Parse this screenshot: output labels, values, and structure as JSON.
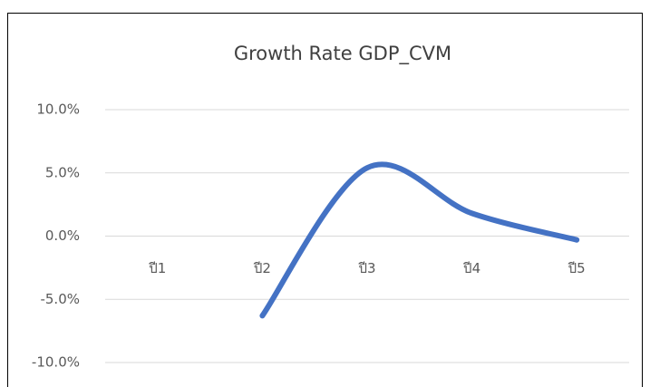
{
  "chart_data": {
    "type": "line",
    "title": "Growth Rate GDP_CVM",
    "categories": [
      "ปี1",
      "ปี2",
      "ปี3",
      "ปี4",
      "ปี5"
    ],
    "values": [
      null,
      -6.3,
      5.4,
      1.8,
      -0.3
    ],
    "color": "#4472c4",
    "smooth": true,
    "ylim": [
      -10,
      10
    ],
    "yticks": [
      {
        "value": -10,
        "label": "-10.0%"
      },
      {
        "value": -5,
        "label": "-5.0%"
      },
      {
        "value": 0,
        "label": "0.0%"
      },
      {
        "value": 5,
        "label": "5.0%"
      },
      {
        "value": 10,
        "label": "10.0%"
      }
    ],
    "grid": true
  }
}
